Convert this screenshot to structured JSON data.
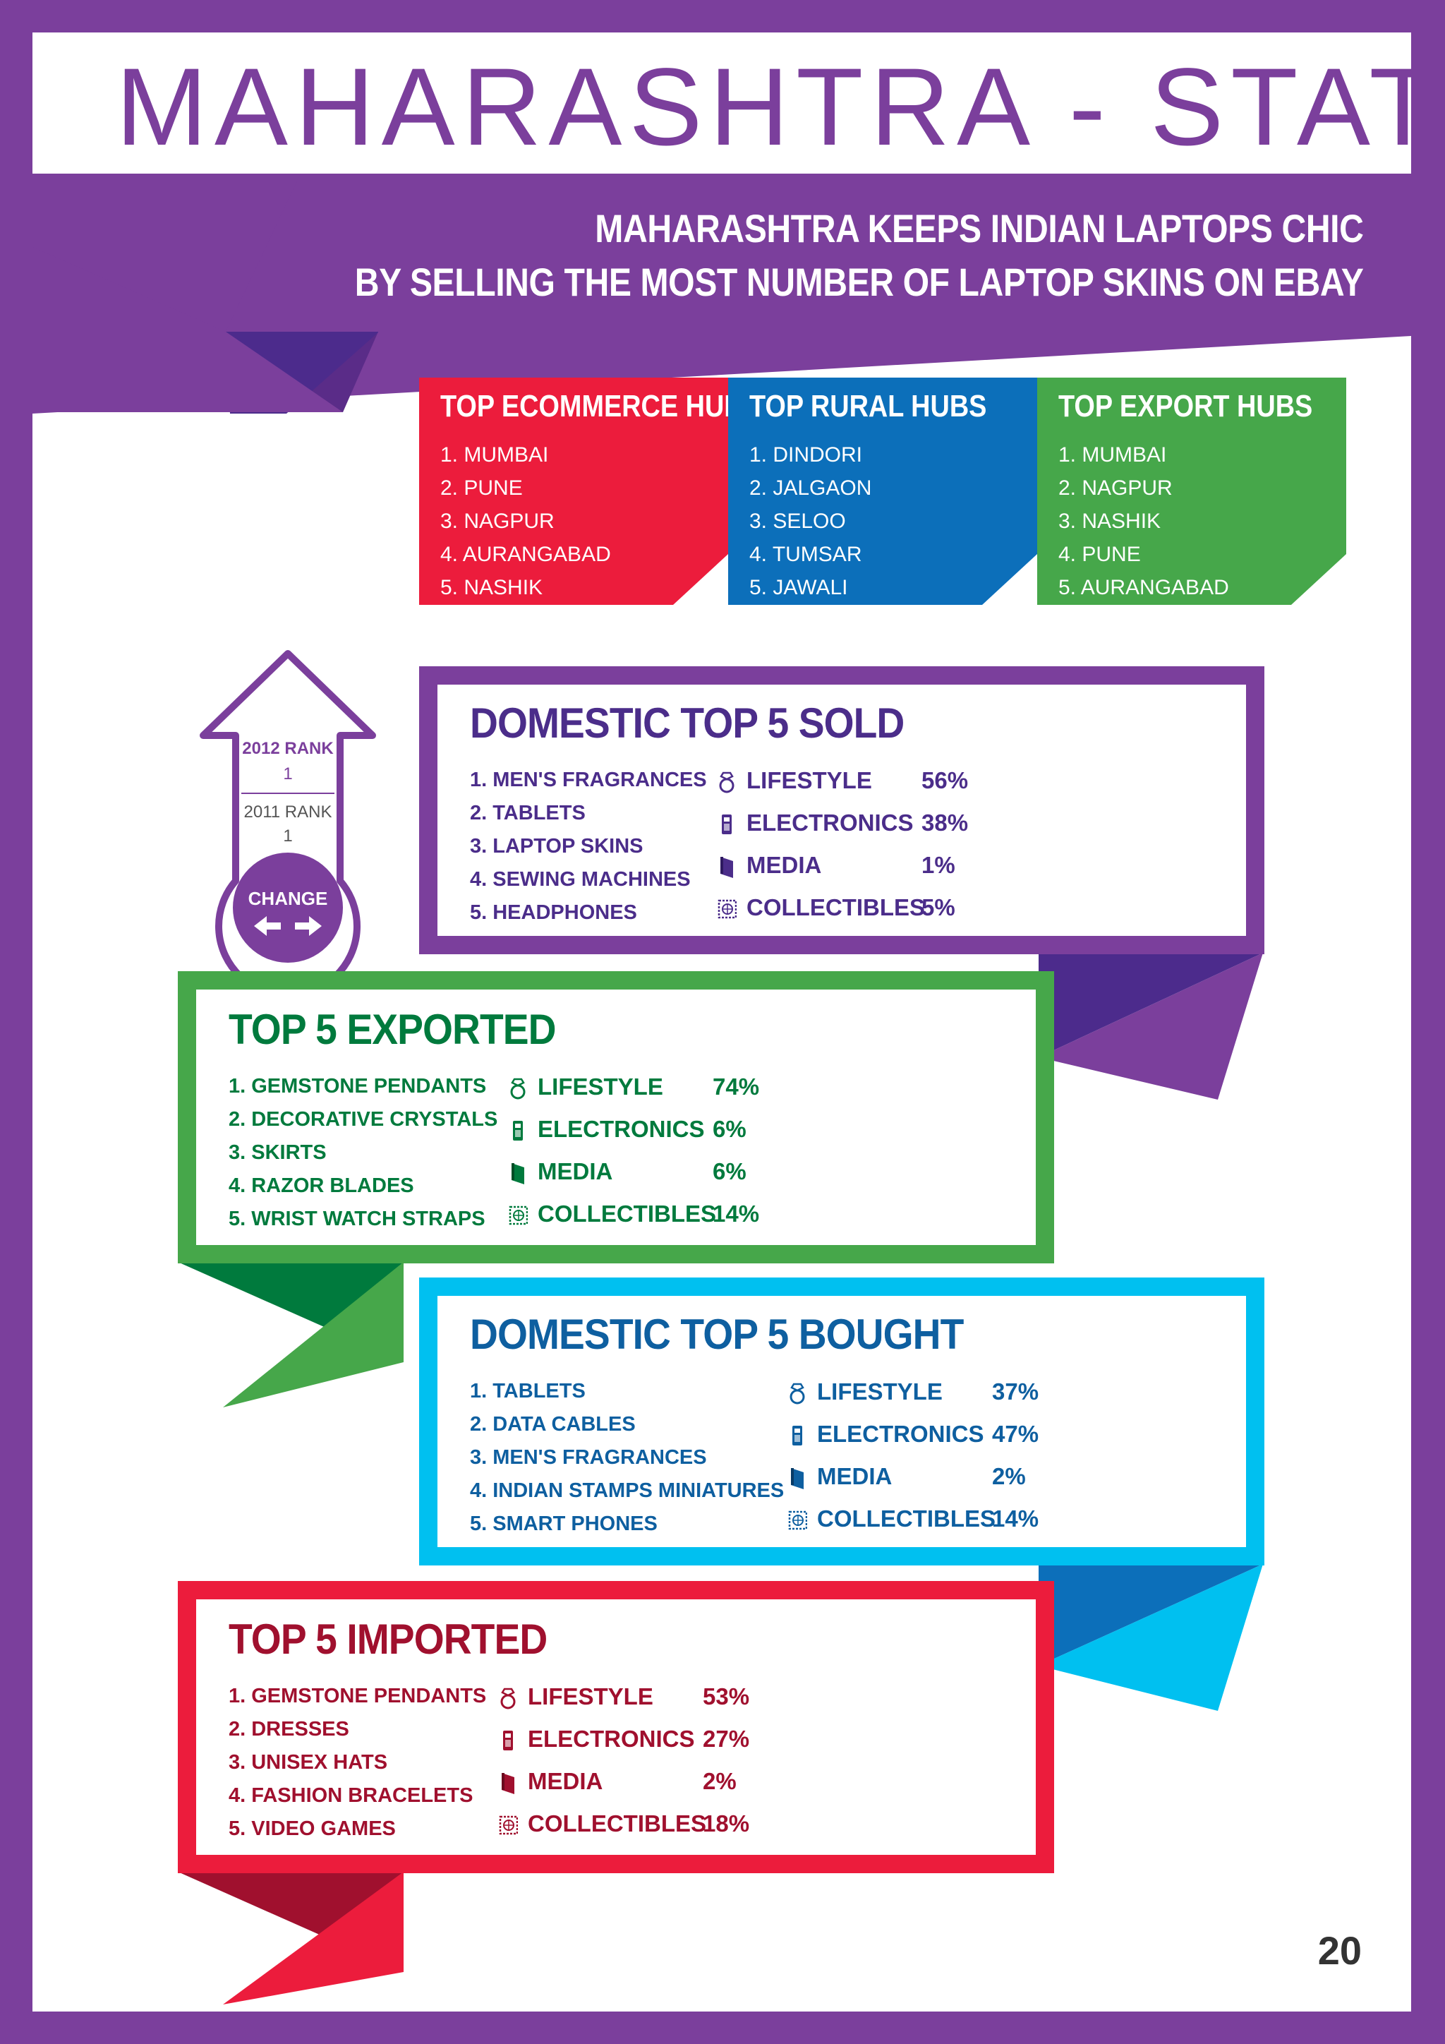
{
  "title": "MAHARASHTRA - STATE",
  "banner": {
    "line1": "MAHARASHTRA KEEPS INDIAN LAPTOPS CHIC",
    "line2": "BY SELLING THE MOST NUMBER OF LAPTOP SKINS ON EBAY"
  },
  "hubs": [
    {
      "title": "TOP ECOMMERCE HUBS",
      "color": "#ec1c3c",
      "items": [
        "1. MUMBAI",
        "2. PUNE",
        "3. NAGPUR",
        "4. AURANGABAD",
        "5. NASHIK"
      ]
    },
    {
      "title": "TOP RURAL HUBS",
      "color": "#0c6fba",
      "items": [
        "1. DINDORI",
        "2. JALGAON",
        "3. SELOO",
        "4. TUMSAR",
        "5. JAWALI"
      ]
    },
    {
      "title": "TOP EXPORT HUBS",
      "color": "#46a74a",
      "items": [
        "1. MUMBAI",
        "2. NAGPUR",
        "3. NASHIK",
        "4. PUNE",
        "5. AURANGABAD"
      ]
    }
  ],
  "rank": {
    "rank_2012_label": "2012 RANK",
    "rank_2012_value": "1",
    "rank_2011_label": "2011 RANK",
    "rank_2011_value": "1",
    "change_label": "CHANGE"
  },
  "sections": {
    "sold": {
      "title": "DOMESTIC TOP 5 SOLD",
      "color": "#7b3f9c",
      "text_color": "#4b2d8a",
      "items": [
        "1. MEN'S FRAGRANCES",
        "2. TABLETS",
        "3. LAPTOP SKINS",
        "4. SEWING MACHINES",
        "5. HEADPHONES"
      ],
      "categories": [
        {
          "icon": "ring-icon",
          "label": "LIFESTYLE",
          "value": "56%"
        },
        {
          "icon": "phone-icon",
          "label": "ELECTRONICS",
          "value": "38%"
        },
        {
          "icon": "book-icon",
          "label": "MEDIA",
          "value": "1%"
        },
        {
          "icon": "stamp-icon",
          "label": "COLLECTIBLES",
          "value": "5%"
        }
      ]
    },
    "exported": {
      "title": "TOP 5 EXPORTED",
      "color": "#46a74a",
      "text_color": "#007a3d",
      "items": [
        "1. GEMSTONE PENDANTS",
        "2. DECORATIVE CRYSTALS",
        "3. SKIRTS",
        "4. RAZOR BLADES",
        "5. WRIST WATCH STRAPS"
      ],
      "categories": [
        {
          "icon": "ring-icon",
          "label": "LIFESTYLE",
          "value": "74%"
        },
        {
          "icon": "phone-icon",
          "label": "ELECTRONICS",
          "value": "6%"
        },
        {
          "icon": "book-icon",
          "label": "MEDIA",
          "value": "6%"
        },
        {
          "icon": "stamp-icon",
          "label": "COLLECTIBLES",
          "value": "14%"
        }
      ]
    },
    "bought": {
      "title": "DOMESTIC TOP 5 BOUGHT",
      "color": "#00c0f0",
      "text_color": "#0e5fa0",
      "items": [
        "1. TABLETS",
        "2. DATA CABLES",
        "3. MEN'S FRAGRANCES",
        "4. INDIAN STAMPS MINIATURES",
        "5. SMART PHONES"
      ],
      "categories": [
        {
          "icon": "ring-icon",
          "label": "LIFESTYLE",
          "value": "37%"
        },
        {
          "icon": "phone-icon",
          "label": "ELECTRONICS",
          "value": "47%"
        },
        {
          "icon": "book-icon",
          "label": "MEDIA",
          "value": "2%"
        },
        {
          "icon": "stamp-icon",
          "label": "COLLECTIBLES",
          "value": "14%"
        }
      ]
    },
    "imported": {
      "title": "TOP 5 IMPORTED",
      "color": "#ec1c3c",
      "text_color": "#a0102e",
      "items": [
        "1. GEMSTONE PENDANTS",
        "2. DRESSES",
        "3. UNISEX HATS",
        "4. FASHION BRACELETS",
        "5. VIDEO GAMES"
      ],
      "categories": [
        {
          "icon": "ring-icon",
          "label": "LIFESTYLE",
          "value": "53%"
        },
        {
          "icon": "phone-icon",
          "label": "ELECTRONICS",
          "value": "27%"
        },
        {
          "icon": "book-icon",
          "label": "MEDIA",
          "value": "2%"
        },
        {
          "icon": "stamp-icon",
          "label": "COLLECTIBLES",
          "value": "18%"
        }
      ]
    }
  },
  "page_number": "20"
}
